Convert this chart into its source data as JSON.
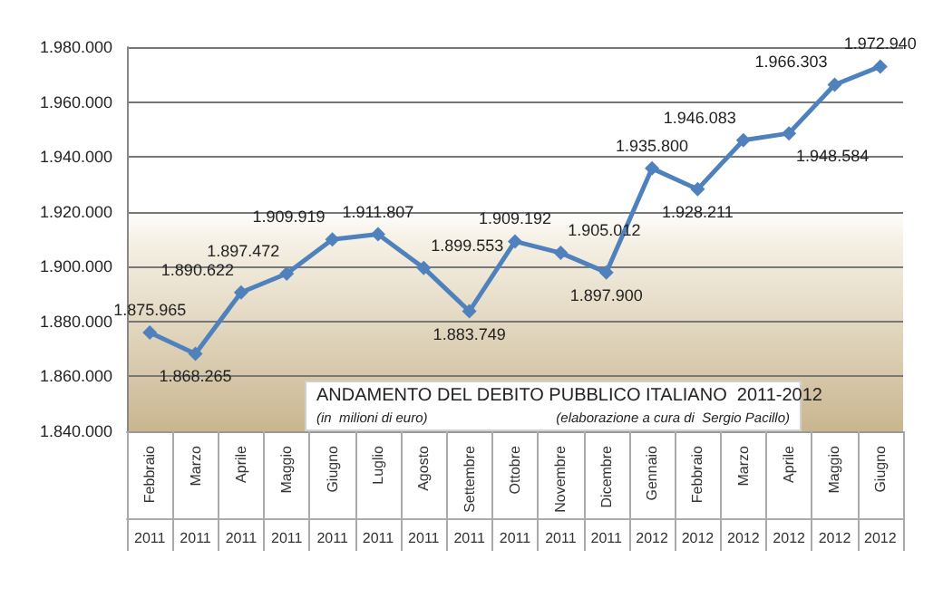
{
  "chart_data": {
    "type": "line",
    "title": "ANDAMENTO DEL DEBITO PUBBLICO ITALIANO  2011-2012",
    "subtitle": "(in  milioni di euro)",
    "annotations": [
      "(elaborazione a cura di  Sergio Pacillo)"
    ],
    "categories": [
      "Febbraio 2011",
      "Marzo 2011",
      "Aprile 2011",
      "Maggio 2011",
      "Giugno 2011",
      "Luglio 2011",
      "Agosto 2011",
      "Settembre 2011",
      "Ottobre 2011",
      "Novembre 2011",
      "Dicembre 2011",
      "Gennaio 2012",
      "Febbraio 2012",
      "Marzo 2012",
      "Aprile 2012",
      "Maggio 2012",
      "Giugno 2012"
    ],
    "series": [
      {
        "color": "#4f81bd",
        "values": [
          1875965,
          1868265,
          1890622,
          1897472,
          1909919,
          1911807,
          1899553,
          1883749,
          1909192,
          1905012,
          1897900,
          1935800,
          1928211,
          1946083,
          1948584,
          1966303,
          1972940
        ],
        "value_labels": [
          "1.875.965",
          "1.868.265",
          "1.890.622",
          "1.897.472",
          "1.909.919",
          "1.911.807",
          "1.899.553",
          "1.883.749",
          "1.909.192",
          "1.905.012",
          "1.897.900",
          "1.935.800",
          "1.928.211",
          "1.946.083",
          "1.948.584",
          "1.966.303",
          "1.972.940"
        ]
      }
    ],
    "ylim": [
      1840000,
      1980000
    ],
    "yticks": [
      {
        "value": 1840000,
        "label": "1.840.000"
      },
      {
        "value": 1860000,
        "label": "1.860.000"
      },
      {
        "value": 1880000,
        "label": "1.880.000"
      },
      {
        "value": 1900000,
        "label": "1.900.000"
      },
      {
        "value": 1920000,
        "label": "1.920.000"
      },
      {
        "value": 1940000,
        "label": "1.940.000"
      },
      {
        "value": 1960000,
        "label": "1.960.000"
      },
      {
        "value": 1980000,
        "label": "1.980.000"
      }
    ],
    "grid": "y",
    "marker": "diamond",
    "line_style": "solid"
  }
}
